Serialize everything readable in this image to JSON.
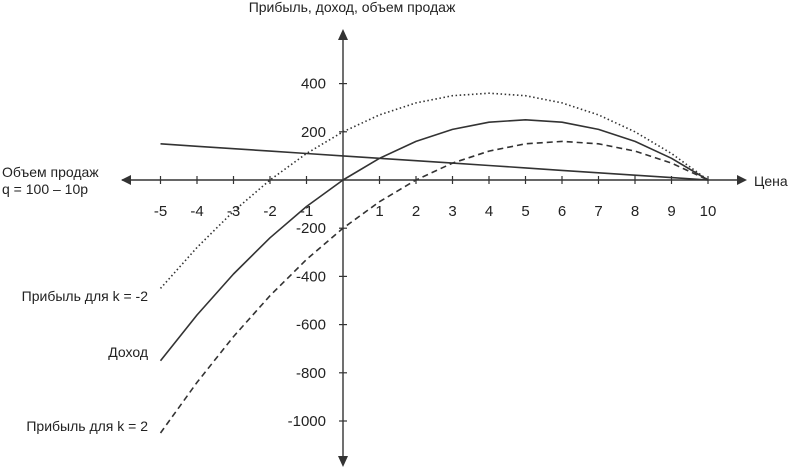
{
  "chart_data": {
    "type": "line",
    "title": "Прибыль, доход, объем продаж",
    "xlabel": "Цена",
    "x_ticks": [
      "-5",
      "-4",
      "-3",
      "-2",
      "-1",
      "1",
      "2",
      "3",
      "4",
      "5",
      "6",
      "7",
      "8",
      "9",
      "10"
    ],
    "y_ticks": [
      "400",
      "200",
      "-200",
      "-400",
      "-600",
      "-800",
      "-1000"
    ],
    "xlim": [
      -5,
      10
    ],
    "ylim": [
      -1000,
      400
    ],
    "grid": false,
    "x": [
      -5,
      -4,
      -3,
      -2,
      -1,
      0,
      1,
      2,
      3,
      4,
      5,
      6,
      7,
      8,
      9,
      10
    ],
    "series": [
      {
        "name": "Объем продаж q = 100 – 10p",
        "name_lines": [
          "Объем продаж",
          "q = 100 – 10p"
        ],
        "style": "solid",
        "values": [
          150,
          140,
          130,
          120,
          110,
          100,
          90,
          80,
          70,
          60,
          50,
          40,
          30,
          20,
          10,
          0
        ]
      },
      {
        "name": "Доход",
        "style": "solid",
        "values": [
          -750,
          -560,
          -390,
          -240,
          -110,
          0,
          90,
          160,
          210,
          240,
          250,
          240,
          210,
          160,
          90,
          0
        ]
      },
      {
        "name": "Прибыль для k = -2",
        "style": "dotted",
        "values": [
          -450,
          -280,
          -130,
          0,
          110,
          200,
          270,
          320,
          350,
          360,
          350,
          320,
          270,
          200,
          110,
          0
        ]
      },
      {
        "name": "Прибыль для k = 2",
        "style": "dashed",
        "values": [
          -1050,
          -840,
          -650,
          -480,
          -330,
          -200,
          -90,
          0,
          70,
          120,
          150,
          160,
          150,
          120,
          70,
          0
        ]
      }
    ]
  }
}
